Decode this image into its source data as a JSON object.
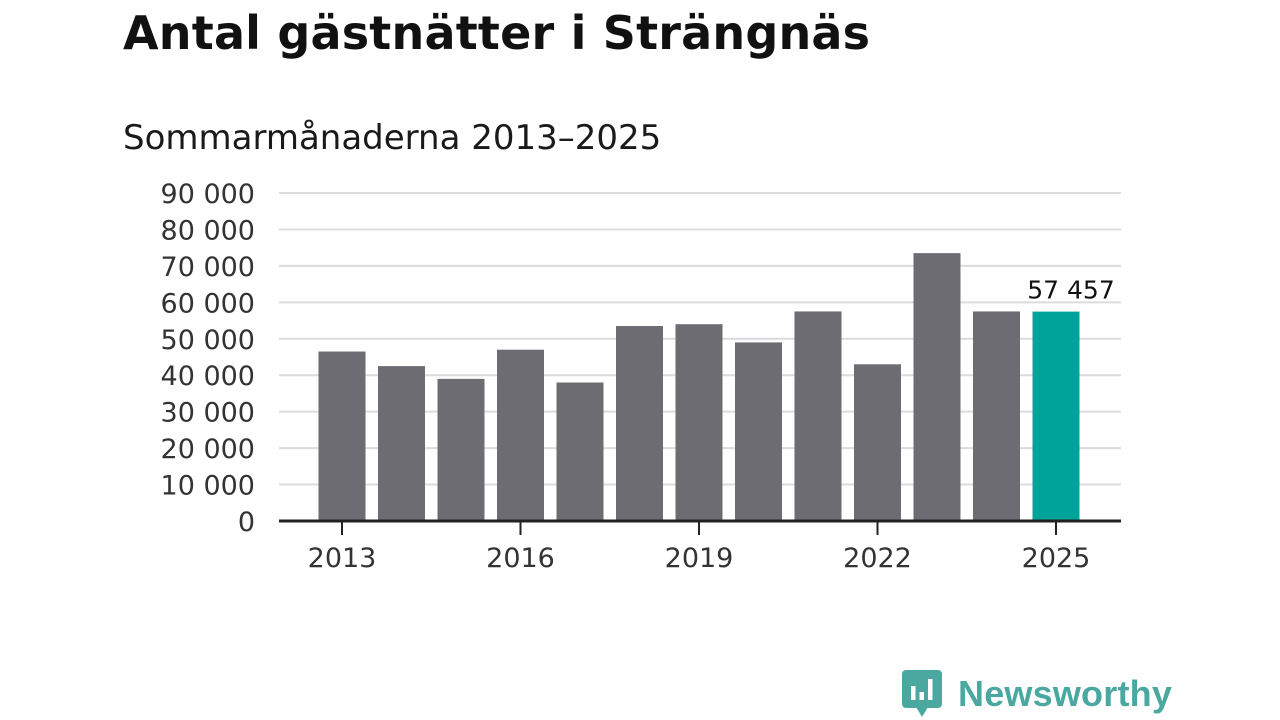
{
  "title": "Antal gästnätter i Strängnäs",
  "subtitle": "Sommarmånaderna 2013–2025",
  "colors": {
    "bar": "#6d6c72",
    "highlight": "#00a39a",
    "gridline": "#dcdcdc",
    "axis": "#222222",
    "brand": "#4aa8a0"
  },
  "chart_data": {
    "type": "bar",
    "title": "Antal gästnätter i Strängnäs",
    "subtitle": "Sommarmånaderna 2013–2025",
    "xlabel": "",
    "ylabel": "",
    "categories": [
      "2013",
      "2014",
      "2015",
      "2016",
      "2017",
      "2018",
      "2019",
      "2020",
      "2021",
      "2022",
      "2023",
      "2024",
      "2025"
    ],
    "values": [
      46500,
      42500,
      39000,
      47000,
      38000,
      53500,
      54000,
      49000,
      57500,
      43000,
      73500,
      57500,
      57457
    ],
    "highlight_index": 12,
    "ylim": [
      0,
      90000
    ],
    "yticks": [
      0,
      10000,
      20000,
      30000,
      40000,
      50000,
      60000,
      70000,
      80000,
      90000
    ],
    "ytick_labels": [
      "0",
      "10 000",
      "20 000",
      "30 000",
      "40 000",
      "50 000",
      "60 000",
      "70 000",
      "80 000",
      "90 000"
    ],
    "xtick_labels": [
      "2013",
      "2016",
      "2019",
      "2022",
      "2025"
    ],
    "data_label": "57 457",
    "grid": true,
    "legend": "none"
  },
  "branding": {
    "name": "Newsworthy",
    "logo_icon": "bar-chart-speech-bubble-icon"
  }
}
